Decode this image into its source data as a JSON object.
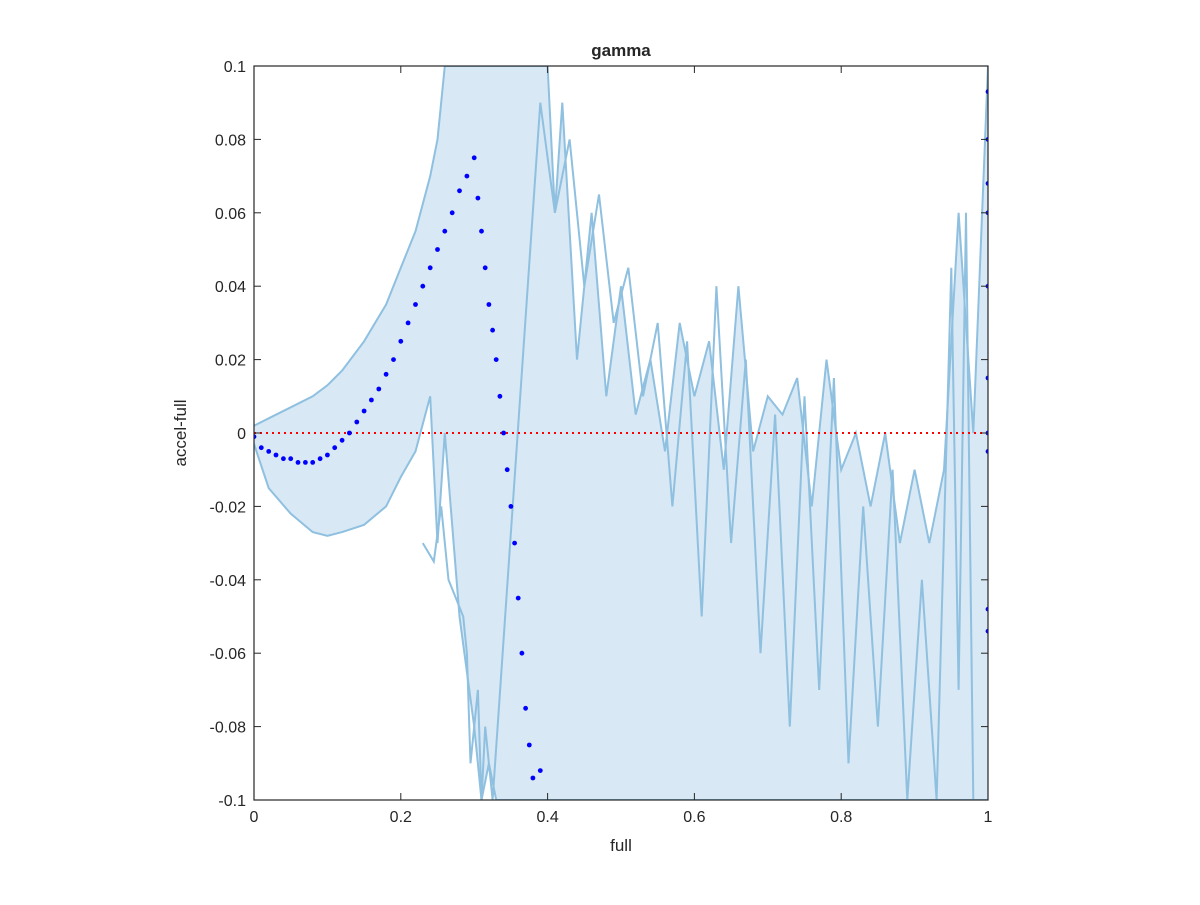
{
  "chart_data": {
    "type": "scatter",
    "title": "gamma",
    "xlabel": "full",
    "ylabel": "accel-full",
    "xlim": [
      0,
      1
    ],
    "ylim": [
      -0.1,
      0.1
    ],
    "xticks": [
      0,
      0.2,
      0.4,
      0.6,
      0.8,
      1
    ],
    "xtick_labels": [
      "0",
      "0.2",
      "0.4",
      "0.6",
      "0.8",
      "1"
    ],
    "yticks": [
      -0.1,
      -0.08,
      -0.06,
      -0.04,
      -0.02,
      0,
      0.02,
      0.04,
      0.06,
      0.08,
      0.1
    ],
    "ytick_labels": [
      "-0.1",
      "-0.08",
      "-0.06",
      "-0.04",
      "-0.02",
      "0",
      "0.02",
      "0.04",
      "0.06",
      "0.08",
      "0.1"
    ],
    "grid": false,
    "reference_line": {
      "y": 0,
      "color": "#ff0000",
      "style": "dotted"
    },
    "colors": {
      "band_fill": "#d8e8f4",
      "band_line": "#8fc0e0",
      "points": "#0000ff",
      "axes": "#262626"
    },
    "band": {
      "upper": {
        "x": [
          0,
          0.02,
          0.05,
          0.08,
          0.1,
          0.12,
          0.15,
          0.18,
          0.2,
          0.22,
          0.24,
          0.25,
          0.26,
          0.3,
          0.4,
          0.41,
          0.42,
          0.44,
          0.46,
          0.48,
          0.5,
          0.52,
          0.54,
          0.56,
          0.58,
          0.6,
          0.62,
          0.64,
          0.66,
          0.68,
          0.7,
          0.72,
          0.74,
          0.76,
          0.78,
          0.8,
          0.82,
          0.84,
          0.86,
          0.88,
          0.9,
          0.92,
          0.94,
          0.96,
          0.98,
          1
        ],
        "y": [
          0.002,
          0.004,
          0.007,
          0.01,
          0.013,
          0.017,
          0.025,
          0.035,
          0.045,
          0.055,
          0.07,
          0.08,
          0.1,
          0.1,
          0.1,
          0.06,
          0.09,
          0.02,
          0.06,
          0.01,
          0.04,
          0.005,
          0.02,
          -0.005,
          0.03,
          0.01,
          0.025,
          -0.01,
          0.04,
          -0.005,
          0.01,
          0.005,
          0.015,
          -0.02,
          0.02,
          -0.01,
          0.0,
          -0.02,
          0.0,
          -0.03,
          -0.01,
          -0.03,
          -0.01,
          0.06,
          0.0,
          0.1
        ]
      },
      "lower": {
        "x": [
          0,
          0.02,
          0.05,
          0.08,
          0.1,
          0.12,
          0.15,
          0.18,
          0.2,
          0.22,
          0.24,
          0.25,
          0.26,
          0.28,
          0.3,
          0.31,
          0.32,
          0.33,
          0.34,
          0.36,
          0.38,
          0.4,
          0.42,
          0.44,
          0.46,
          0.48,
          0.5,
          0.52,
          0.54,
          0.56,
          0.58,
          0.6,
          0.62,
          0.64,
          0.66,
          0.68,
          0.7,
          0.72,
          0.74,
          0.76,
          0.78,
          0.8,
          0.82,
          0.84,
          0.86,
          0.88,
          0.9,
          0.92,
          0.94,
          0.96,
          0.98,
          1
        ],
        "y": [
          -0.003,
          -0.015,
          -0.022,
          -0.027,
          -0.028,
          -0.027,
          -0.025,
          -0.02,
          -0.012,
          -0.005,
          0.01,
          -0.03,
          0.0,
          -0.05,
          -0.08,
          -0.1,
          -0.09,
          -0.1,
          -0.1,
          -0.1,
          -0.1,
          -0.1,
          -0.1,
          -0.1,
          -0.1,
          -0.1,
          -0.1,
          -0.1,
          -0.1,
          -0.1,
          -0.1,
          -0.1,
          -0.1,
          -0.1,
          -0.1,
          -0.1,
          -0.1,
          -0.1,
          -0.1,
          -0.1,
          -0.1,
          -0.1,
          -0.1,
          -0.1,
          -0.1,
          -0.1,
          -0.1,
          -0.1,
          -0.1,
          -0.1,
          -0.1,
          -0.1
        ]
      },
      "spikes": {
        "x": [
          0.23,
          0.245,
          0.255,
          0.265,
          0.275,
          0.285,
          0.29,
          0.295,
          0.305,
          0.31,
          0.315,
          0.325,
          0.39,
          0.41,
          0.43,
          0.45,
          0.47,
          0.49,
          0.51,
          0.53,
          0.55,
          0.57,
          0.59,
          0.61,
          0.63,
          0.65,
          0.67,
          0.69,
          0.71,
          0.73,
          0.75,
          0.77,
          0.79,
          0.81,
          0.83,
          0.85,
          0.87,
          0.89,
          0.91,
          0.93,
          0.95,
          0.96,
          0.97,
          0.98
        ],
        "y": [
          -0.03,
          -0.035,
          -0.02,
          -0.04,
          -0.045,
          -0.05,
          -0.06,
          -0.09,
          -0.07,
          -0.1,
          -0.08,
          -0.1,
          0.09,
          0.06,
          0.08,
          0.04,
          0.065,
          0.03,
          0.045,
          0.01,
          0.03,
          -0.02,
          0.025,
          -0.05,
          0.04,
          -0.03,
          0.02,
          -0.06,
          0.005,
          -0.08,
          0.01,
          -0.07,
          0.015,
          -0.09,
          -0.02,
          -0.08,
          -0.01,
          -0.1,
          -0.04,
          -0.1,
          0.045,
          -0.07,
          0.06,
          -0.1
        ]
      }
    },
    "series": [
      {
        "x": [
          0.0,
          0.01,
          0.02,
          0.03,
          0.04,
          0.05,
          0.06,
          0.07,
          0.08,
          0.09,
          0.1,
          0.11,
          0.12,
          0.13,
          0.14,
          0.15,
          0.16,
          0.17,
          0.18,
          0.19,
          0.2,
          0.21,
          0.22,
          0.23,
          0.24,
          0.25,
          0.26,
          0.27,
          0.28,
          0.29,
          0.3,
          0.305,
          0.31,
          0.315,
          0.32,
          0.325,
          0.33,
          0.335,
          0.34,
          0.345,
          0.35,
          0.355,
          0.36,
          0.365,
          0.37,
          0.375,
          0.38,
          0.39,
          1.0,
          1.0,
          1.0,
          1.0,
          1.0,
          1.0,
          1.0,
          1.0,
          1.0,
          1.0
        ],
        "y": [
          -0.001,
          -0.004,
          -0.005,
          -0.006,
          -0.007,
          -0.007,
          -0.008,
          -0.008,
          -0.008,
          -0.007,
          -0.006,
          -0.004,
          -0.002,
          0.0,
          0.003,
          0.006,
          0.009,
          0.012,
          0.016,
          0.02,
          0.025,
          0.03,
          0.035,
          0.04,
          0.045,
          0.05,
          0.055,
          0.06,
          0.066,
          0.07,
          0.075,
          0.064,
          0.055,
          0.045,
          0.035,
          0.028,
          0.02,
          0.01,
          0.0,
          -0.01,
          -0.02,
          -0.03,
          -0.045,
          -0.06,
          -0.075,
          -0.085,
          -0.094,
          -0.092,
          0.093,
          0.08,
          0.06,
          0.04,
          0.015,
          0.0,
          -0.005,
          -0.048,
          -0.054,
          0.068
        ]
      }
    ]
  }
}
